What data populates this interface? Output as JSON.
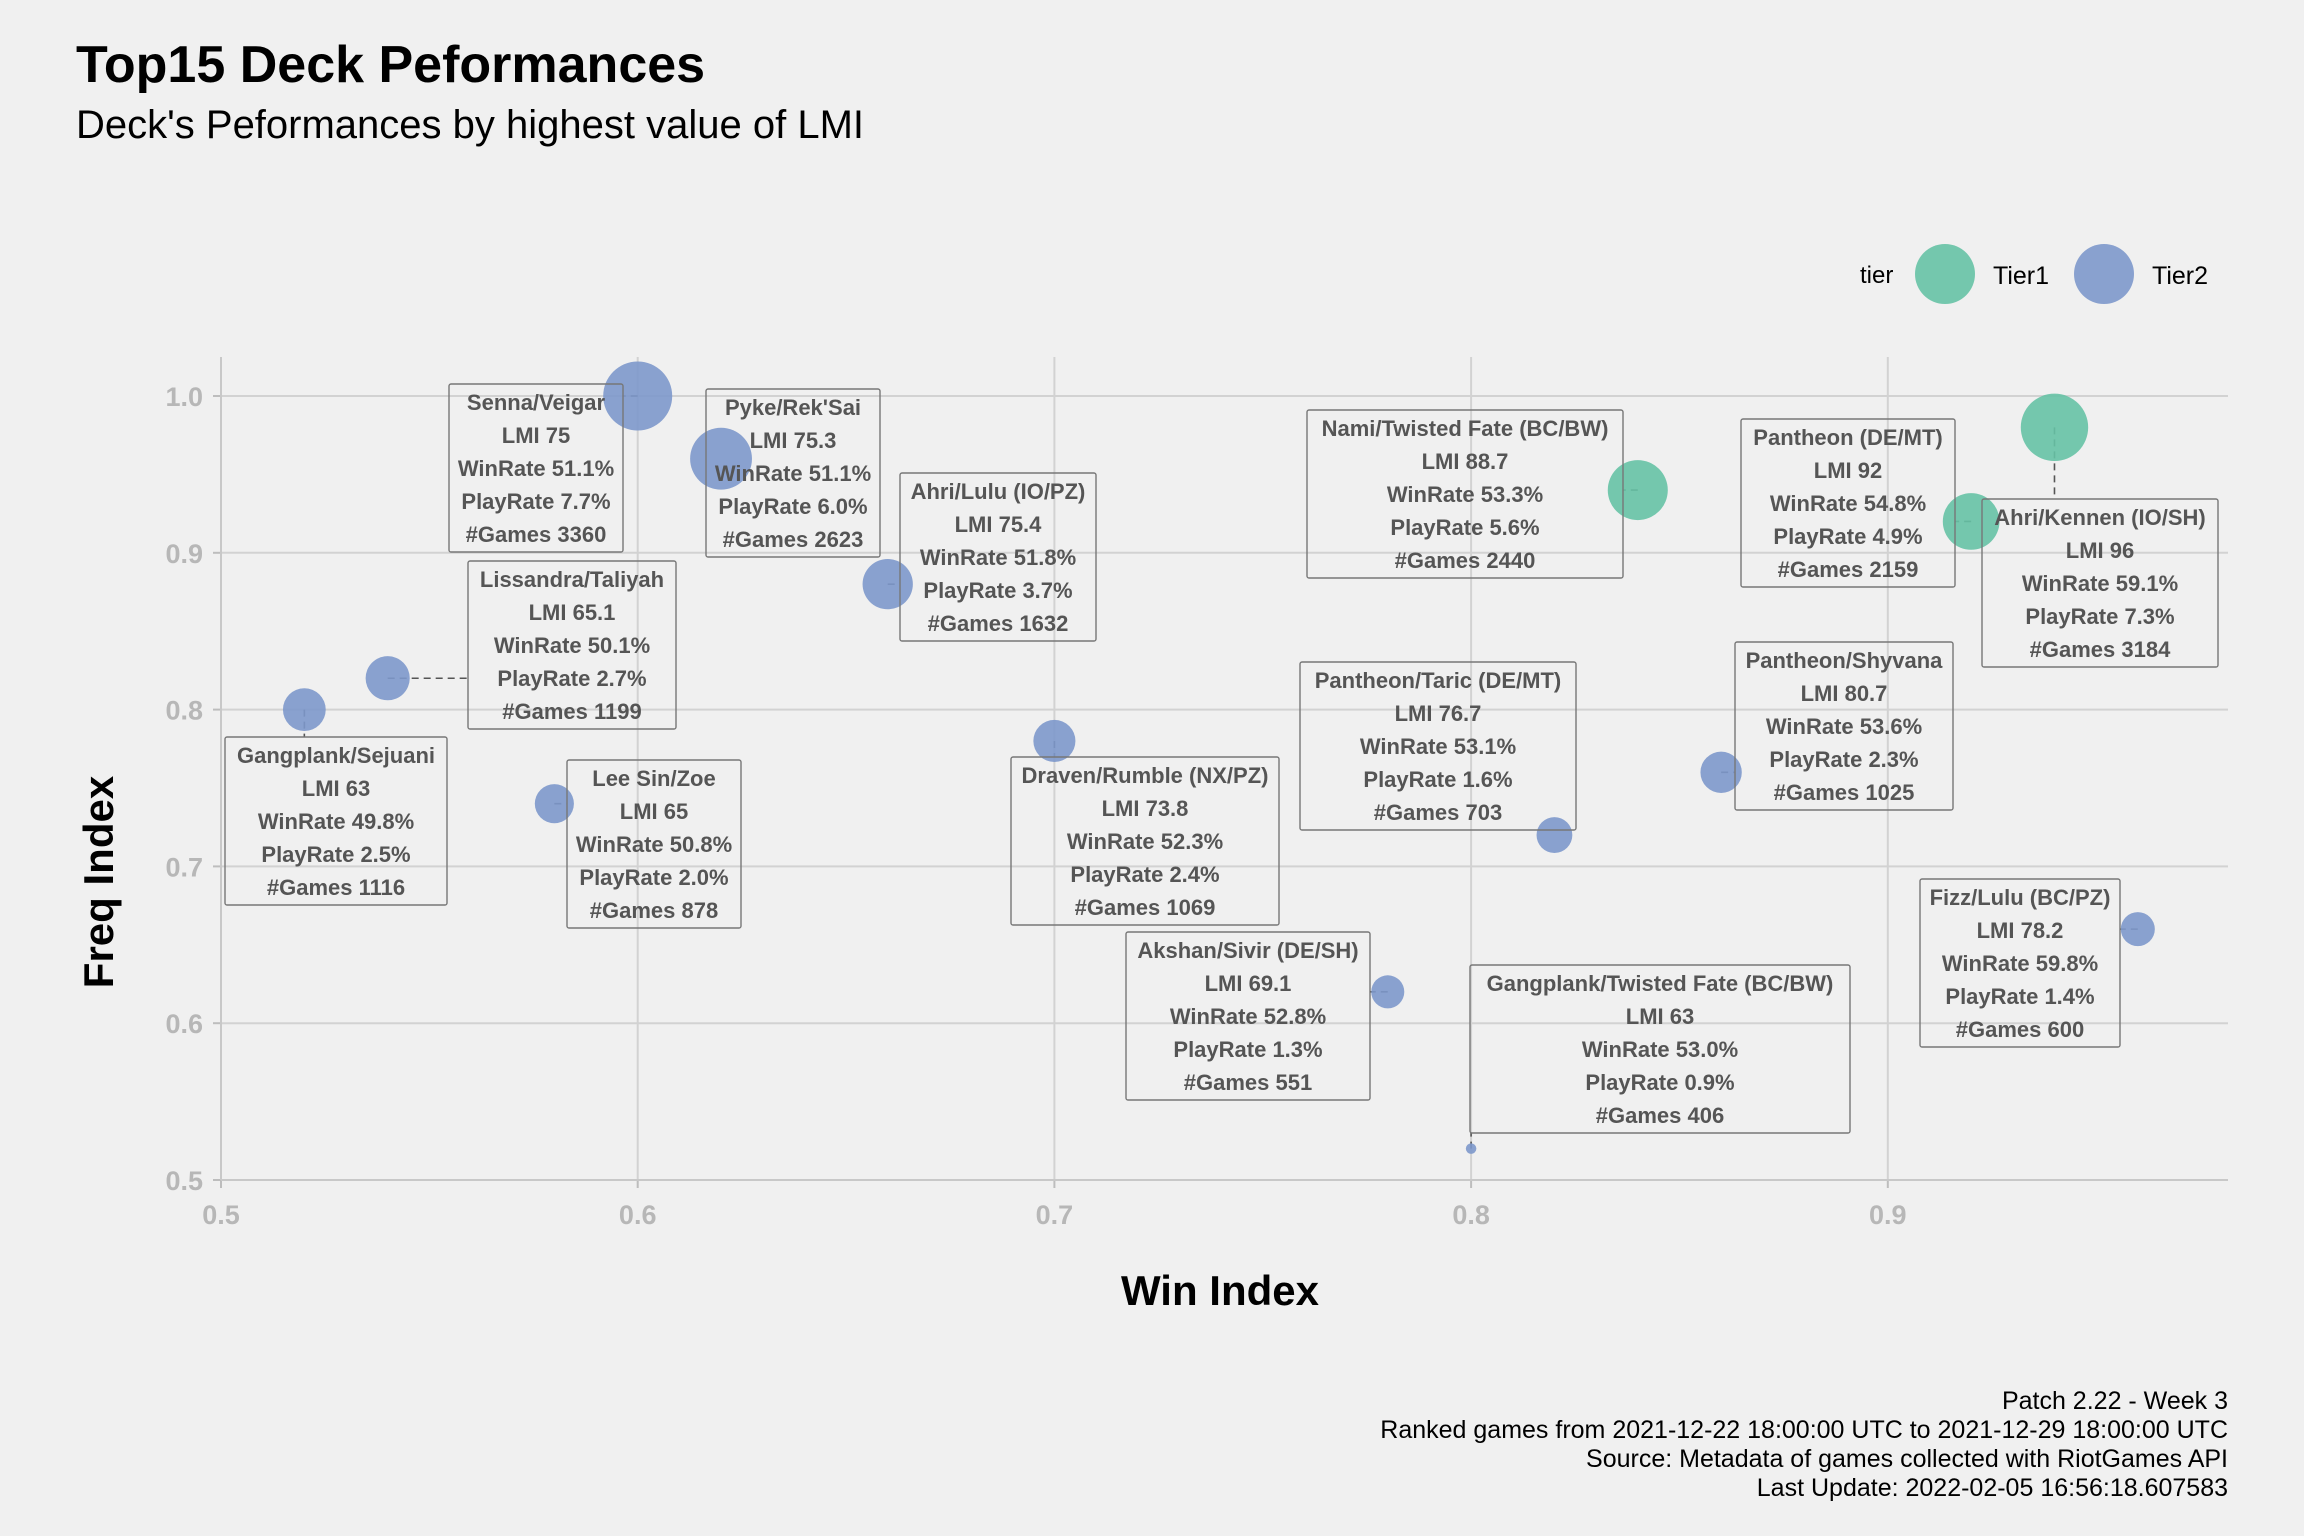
{
  "title": "Top15 Deck Peformances",
  "subtitle": "Deck's Peformances by highest value of LMI",
  "caption": [
    "Patch 2.22 - Week 3",
    "Ranked games from 2021-12-22 18:00:00 UTC to 2021-12-29 18:00:00 UTC",
    "Source: Metadata of games collected with RiotGames API",
    "Last Update: 2022-02-05 16:56:18.607583"
  ],
  "legend": {
    "title": "tier",
    "items": [
      {
        "label": "Tier1",
        "color": "#66c2a5"
      },
      {
        "label": "Tier2",
        "color": "#7d98cb"
      }
    ],
    "position": "top-right"
  },
  "chart_data": {
    "type": "scatter",
    "title": "Top15 Deck Peformances",
    "subtitle": "Deck's Peformances by highest value of LMI",
    "xlabel": "Win Index",
    "ylabel": "Freq Index",
    "xlim": [
      0.5,
      0.98
    ],
    "ylim": [
      0.5,
      1.0
    ],
    "xticks": [
      "0.5",
      "0.6",
      "0.7",
      "0.8",
      "0.9"
    ],
    "yticks": [
      "0.5",
      "0.6",
      "0.7",
      "0.8",
      "0.9",
      "1.0"
    ],
    "grid": true,
    "size_by": "PlayRate",
    "color_by": "tier",
    "points": [
      {
        "name": "Senna/Veigar",
        "x": 0.6,
        "y": 1.0,
        "tier": "Tier2",
        "lmi": "75",
        "winrate": "51.1%",
        "playrate": 7.7,
        "games": "3360"
      },
      {
        "name": "Pyke/Rek'Sai",
        "x": 0.62,
        "y": 0.96,
        "tier": "Tier2",
        "lmi": "75.3",
        "winrate": "51.1%",
        "playrate": 6.0,
        "games": "2623"
      },
      {
        "name": "Ahri/Lulu (IO/PZ)",
        "x": 0.66,
        "y": 0.88,
        "tier": "Tier2",
        "lmi": "75.4",
        "winrate": "51.8%",
        "playrate": 3.7,
        "games": "1632"
      },
      {
        "name": "Lissandra/Taliyah",
        "x": 0.54,
        "y": 0.82,
        "tier": "Tier2",
        "lmi": "65.1",
        "winrate": "50.1%",
        "playrate": 2.7,
        "games": "1199"
      },
      {
        "name": "Gangplank/Sejuani",
        "x": 0.52,
        "y": 0.8,
        "tier": "Tier2",
        "lmi": "63",
        "winrate": "49.8%",
        "playrate": 2.5,
        "games": "1116"
      },
      {
        "name": "Lee Sin/Zoe",
        "x": 0.58,
        "y": 0.74,
        "tier": "Tier2",
        "lmi": "65",
        "winrate": "50.8%",
        "playrate": 2.0,
        "games": "878"
      },
      {
        "name": "Draven/Rumble (NX/PZ)",
        "x": 0.7,
        "y": 0.78,
        "tier": "Tier2",
        "lmi": "73.8",
        "winrate": "52.3%",
        "playrate": 2.4,
        "games": "1069"
      },
      {
        "name": "Akshan/Sivir (DE/SH)",
        "x": 0.78,
        "y": 0.62,
        "tier": "Tier2",
        "lmi": "69.1",
        "winrate": "52.8%",
        "playrate": 1.3,
        "games": "551"
      },
      {
        "name": "Gangplank/Twisted Fate (BC/BW)",
        "x": 0.8,
        "y": 0.52,
        "tier": "Tier2",
        "lmi": "63",
        "winrate": "53.0%",
        "playrate": 0.9,
        "games": "406"
      },
      {
        "name": "Pantheon/Taric (DE/MT)",
        "x": 0.82,
        "y": 0.72,
        "tier": "Tier2",
        "lmi": "76.7",
        "winrate": "53.1%",
        "playrate": 1.6,
        "games": "703"
      },
      {
        "name": "Nami/Twisted Fate (BC/BW)",
        "x": 0.84,
        "y": 0.94,
        "tier": "Tier1",
        "lmi": "88.7",
        "winrate": "53.3%",
        "playrate": 5.6,
        "games": "2440"
      },
      {
        "name": "Pantheon/Shyvana",
        "x": 0.86,
        "y": 0.76,
        "tier": "Tier2",
        "lmi": "80.7",
        "winrate": "53.6%",
        "playrate": 2.3,
        "games": "1025"
      },
      {
        "name": "Pantheon (DE/MT)",
        "x": 0.92,
        "y": 0.92,
        "tier": "Tier1",
        "lmi": "92",
        "winrate": "54.8%",
        "playrate": 4.9,
        "games": "2159"
      },
      {
        "name": "Ahri/Kennen (IO/SH)",
        "x": 0.94,
        "y": 0.98,
        "tier": "Tier1",
        "lmi": "96",
        "winrate": "59.1%",
        "playrate": 7.3,
        "games": "3184"
      },
      {
        "name": "Fizz/Lulu (BC/PZ)",
        "x": 0.96,
        "y": 0.66,
        "tier": "Tier2",
        "lmi": "78.2",
        "winrate": "59.8%",
        "playrate": 1.4,
        "games": "600"
      }
    ]
  }
}
